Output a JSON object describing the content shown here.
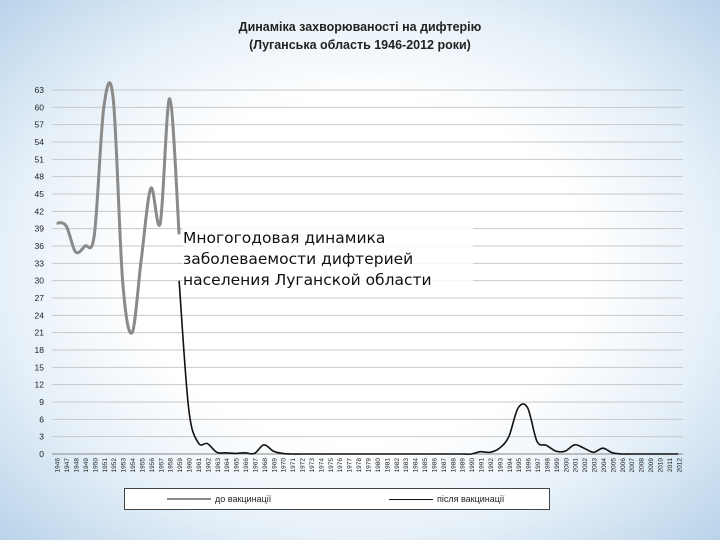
{
  "chart_data": {
    "type": "line",
    "title": "Динаміка захворюваності на дифтерію",
    "subtitle": "(Луганська область 1946-2012 роки)",
    "xlabel": "",
    "ylabel": "",
    "ylim": [
      0,
      63
    ],
    "yticks": [
      0,
      3,
      6,
      9,
      12,
      15,
      18,
      21,
      24,
      27,
      30,
      33,
      36,
      39,
      42,
      45,
      48,
      51,
      54,
      57,
      60,
      63
    ],
    "grid": true,
    "legend_position": "bottom",
    "categories": [
      "1946",
      "1947",
      "1948",
      "1949",
      "1950",
      "1951",
      "1952",
      "1953",
      "1954",
      "1955",
      "1956",
      "1957",
      "1958",
      "1959",
      "1960",
      "1961",
      "1962",
      "1963",
      "1964",
      "1965",
      "1966",
      "1967",
      "1968",
      "1969",
      "1970",
      "1971",
      "1972",
      "1973",
      "1974",
      "1975",
      "1976",
      "1977",
      "1978",
      "1979",
      "1980",
      "1981",
      "1982",
      "1983",
      "1984",
      "1985",
      "1986",
      "1987",
      "1988",
      "1989",
      "1990",
      "1991",
      "1992",
      "1993",
      "1994",
      "1995",
      "1996",
      "1997",
      "1998",
      "1999",
      "2000",
      "2001",
      "2002",
      "2003",
      "2004",
      "2005",
      "2006",
      "2007",
      "2008",
      "2009",
      "2010",
      "2011",
      "2012"
    ],
    "series": [
      {
        "name": "до вакцинації",
        "color": "#8a8a8a",
        "points": [
          [
            1946,
            40
          ],
          [
            1947,
            39.5
          ],
          [
            1948,
            35
          ],
          [
            1949,
            36
          ],
          [
            1950,
            38
          ],
          [
            1951,
            60
          ],
          [
            1952,
            61.5
          ],
          [
            1953,
            30
          ],
          [
            1954,
            21
          ],
          [
            1955,
            34
          ],
          [
            1956,
            46
          ],
          [
            1957,
            40
          ],
          [
            1958,
            61.5
          ],
          [
            1959,
            38
          ]
        ]
      },
      {
        "name": "після вакцинації",
        "color": "#111111",
        "points": [
          [
            1959,
            30
          ],
          [
            1960,
            8
          ],
          [
            1961,
            2
          ],
          [
            1962,
            1.8
          ],
          [
            1963,
            0.3
          ],
          [
            1964,
            0.2
          ],
          [
            1965,
            0.1
          ],
          [
            1966,
            0.2
          ],
          [
            1967,
            0.1
          ],
          [
            1968,
            1.6
          ],
          [
            1969,
            0.5
          ],
          [
            1970,
            0.1
          ],
          [
            1971,
            0
          ],
          [
            1972,
            0
          ],
          [
            1973,
            0
          ],
          [
            1974,
            0
          ],
          [
            1975,
            0
          ],
          [
            1976,
            0
          ],
          [
            1977,
            0
          ],
          [
            1978,
            0
          ],
          [
            1979,
            0
          ],
          [
            1980,
            0
          ],
          [
            1981,
            0
          ],
          [
            1982,
            0
          ],
          [
            1983,
            0
          ],
          [
            1984,
            0
          ],
          [
            1985,
            0
          ],
          [
            1986,
            0
          ],
          [
            1987,
            0
          ],
          [
            1988,
            0
          ],
          [
            1989,
            0
          ],
          [
            1990,
            0
          ],
          [
            1991,
            0.4
          ],
          [
            1992,
            0.3
          ],
          [
            1993,
            1
          ],
          [
            1994,
            3
          ],
          [
            1995,
            8
          ],
          [
            1996,
            8
          ],
          [
            1997,
            2.2
          ],
          [
            1998,
            1.5
          ],
          [
            1999,
            0.5
          ],
          [
            2000,
            0.5
          ],
          [
            2001,
            1.6
          ],
          [
            2002,
            1
          ],
          [
            2003,
            0.3
          ],
          [
            2004,
            1
          ],
          [
            2005,
            0.2
          ],
          [
            2006,
            0
          ],
          [
            2007,
            0
          ],
          [
            2008,
            0
          ],
          [
            2009,
            0
          ],
          [
            2010,
            0
          ],
          [
            2011,
            0
          ],
          [
            2012,
            0
          ]
        ]
      }
    ]
  },
  "overlay_text": "Многогодовая динамика заболеваемости дифтерией населения Луганской области",
  "colors": {
    "grid": "#c8c8c8",
    "axis": "#888888",
    "background_edge": "#b9d3ea"
  }
}
